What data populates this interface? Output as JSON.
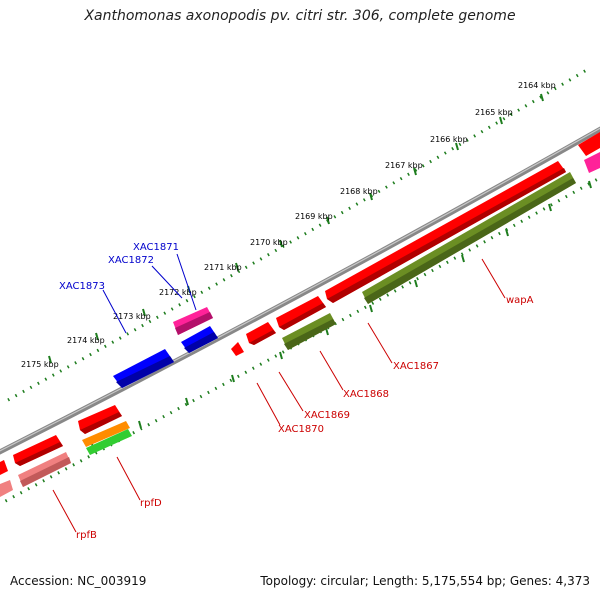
{
  "title": "Xanthomonas axonopodis pv. citri str. 306, complete genome",
  "footer": {
    "accession": "Accession: NC_003919",
    "summary": "Topology: circular; Length: 5,175,554 bp; Genes: 4,373"
  },
  "colors": {
    "backbone": "#888888",
    "tick": "#1e7d1e",
    "gene_red": "#ff0000",
    "gene_olive": "#6b8e23",
    "gene_blue": "#0000ff",
    "gene_magenta": "#ff2299",
    "gene_pink": "#f08080",
    "gene_orange": "#ff8c00",
    "gene_green": "#32cd32",
    "label_red": "#cc0000",
    "label_blue": "#0000cc"
  },
  "scale_labels": [
    "2164 kbp",
    "2165 kbp",
    "2166 kbp",
    "2167 kbp",
    "2168 kbp",
    "2169 kbp",
    "2170 kbp",
    "2171 kbp",
    "2172 kbp",
    "2173 kbp",
    "2174 kbp",
    "2175 kbp"
  ],
  "gene_labels": {
    "wapA": "wapA",
    "XAC1867": "XAC1867",
    "XAC1868": "XAC1868",
    "XAC1869": "XAC1869",
    "XAC1870": "XAC1870",
    "rpfD": "rpfD",
    "rpfB": "rpfB",
    "XAC1871": "XAC1871",
    "XAC1872": "XAC1872",
    "XAC1873": "XAC1873"
  }
}
